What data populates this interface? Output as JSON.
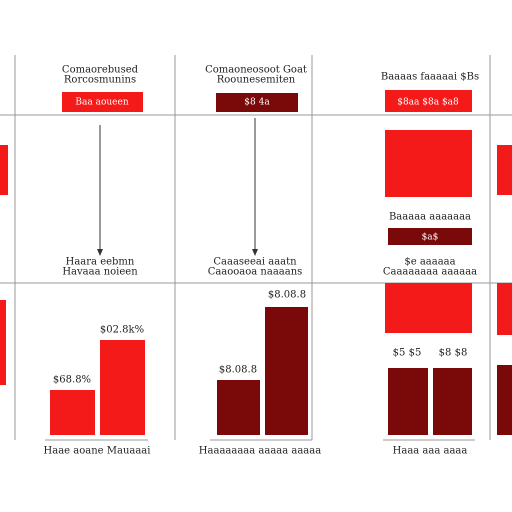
{
  "panels": [
    {
      "header": [
        "Comaorebused",
        "Rorcosmunins"
      ],
      "button": "Baa aoueen",
      "caption": [
        "Haara eebmn",
        "Havaaa noieen"
      ],
      "bar_labels": [
        "$68.8%",
        "$02.8k%"
      ],
      "footer": "Haae aoane Mauaaai"
    },
    {
      "header": [
        "Comaoneosoot Goat",
        "Roounesemiten"
      ],
      "button": "$8 4a",
      "caption": [
        "Caaaseeai aaatn",
        "Caaooaoa naaaans"
      ],
      "bar_labels": [
        "$8.08.8",
        "$8.08.8"
      ],
      "footer": "Haaaaaaaa aaaaa aaaaa"
    },
    {
      "header": [
        "Baaaas faaaaai $Bs"
      ],
      "button": "$8aa $8a $a8",
      "sub_text": "Baaaaa aaaaaaa",
      "sub_button": "$a$",
      "caption": [
        "$e aaaaaa",
        "Caaaaaaaa aaaaaa"
      ],
      "bar_labels": [
        "$5 $5",
        "$8 $8"
      ],
      "footer": "Haaa aaa aaaa"
    }
  ]
}
